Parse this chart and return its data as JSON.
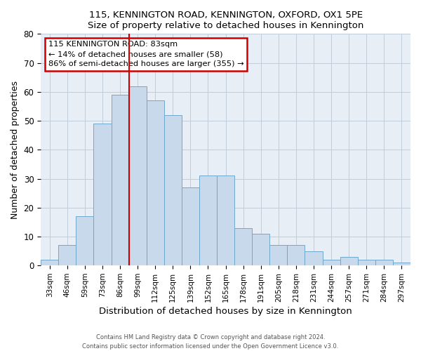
{
  "title": "115, KENNINGTON ROAD, KENNINGTON, OXFORD, OX1 5PE",
  "subtitle": "Size of property relative to detached houses in Kennington",
  "xlabel": "Distribution of detached houses by size in Kennington",
  "ylabel": "Number of detached properties",
  "bar_labels": [
    "33sqm",
    "46sqm",
    "59sqm",
    "73sqm",
    "86sqm",
    "99sqm",
    "112sqm",
    "125sqm",
    "139sqm",
    "152sqm",
    "165sqm",
    "178sqm",
    "191sqm",
    "205sqm",
    "218sqm",
    "231sqm",
    "244sqm",
    "257sqm",
    "271sqm",
    "284sqm",
    "297sqm"
  ],
  "bar_values": [
    2,
    7,
    17,
    49,
    59,
    62,
    57,
    52,
    27,
    31,
    31,
    13,
    11,
    7,
    7,
    5,
    2,
    3,
    2,
    2,
    1
  ],
  "bar_color": "#c8d9ec",
  "bar_edge_color": "#6fa8cc",
  "vline_color": "#cc0000",
  "annotation_title": "115 KENNINGTON ROAD: 83sqm",
  "annotation_line1": "← 14% of detached houses are smaller (58)",
  "annotation_line2": "86% of semi-detached houses are larger (355) →",
  "annotation_box_color": "#ffffff",
  "annotation_box_edge": "#cc0000",
  "ylim": [
    0,
    80
  ],
  "bg_color": "#e8eef5",
  "grid_color": "#c0ccd8",
  "footer1": "Contains HM Land Registry data © Crown copyright and database right 2024.",
  "footer2": "Contains public sector information licensed under the Open Government Licence v3.0."
}
